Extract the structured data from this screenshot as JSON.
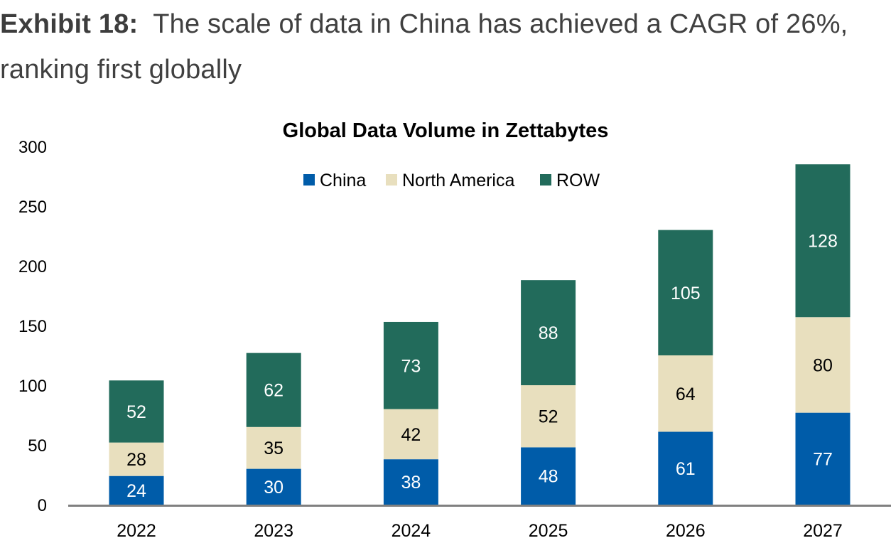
{
  "header": {
    "exhibit_label": "Exhibit 18:",
    "exhibit_text": "The scale of data in China has achieved a CAGR of 26%, ranking first globally"
  },
  "chart_data": {
    "type": "bar",
    "stacked": true,
    "title": "Global Data Volume in Zettabytes",
    "xlabel": "",
    "ylabel": "",
    "categories": [
      "2022",
      "2023",
      "2024",
      "2025",
      "2026",
      "2027"
    ],
    "series": [
      {
        "name": "China",
        "color": "#005CA9",
        "label_color": "#ffffff",
        "values": [
          24,
          30,
          38,
          48,
          61,
          77
        ]
      },
      {
        "name": "North America",
        "color": "#E8DFBE",
        "label_color": "#000000",
        "values": [
          28,
          35,
          42,
          52,
          64,
          80
        ]
      },
      {
        "name": "ROW",
        "color": "#226B5B",
        "label_color": "#ffffff",
        "values": [
          52,
          62,
          73,
          88,
          105,
          128
        ]
      }
    ],
    "ylim": [
      0,
      300
    ],
    "yticks": [
      0,
      50,
      100,
      150,
      200,
      250,
      300
    ],
    "grid": false,
    "legend_position": "top-center",
    "axis_color": "#808080"
  }
}
